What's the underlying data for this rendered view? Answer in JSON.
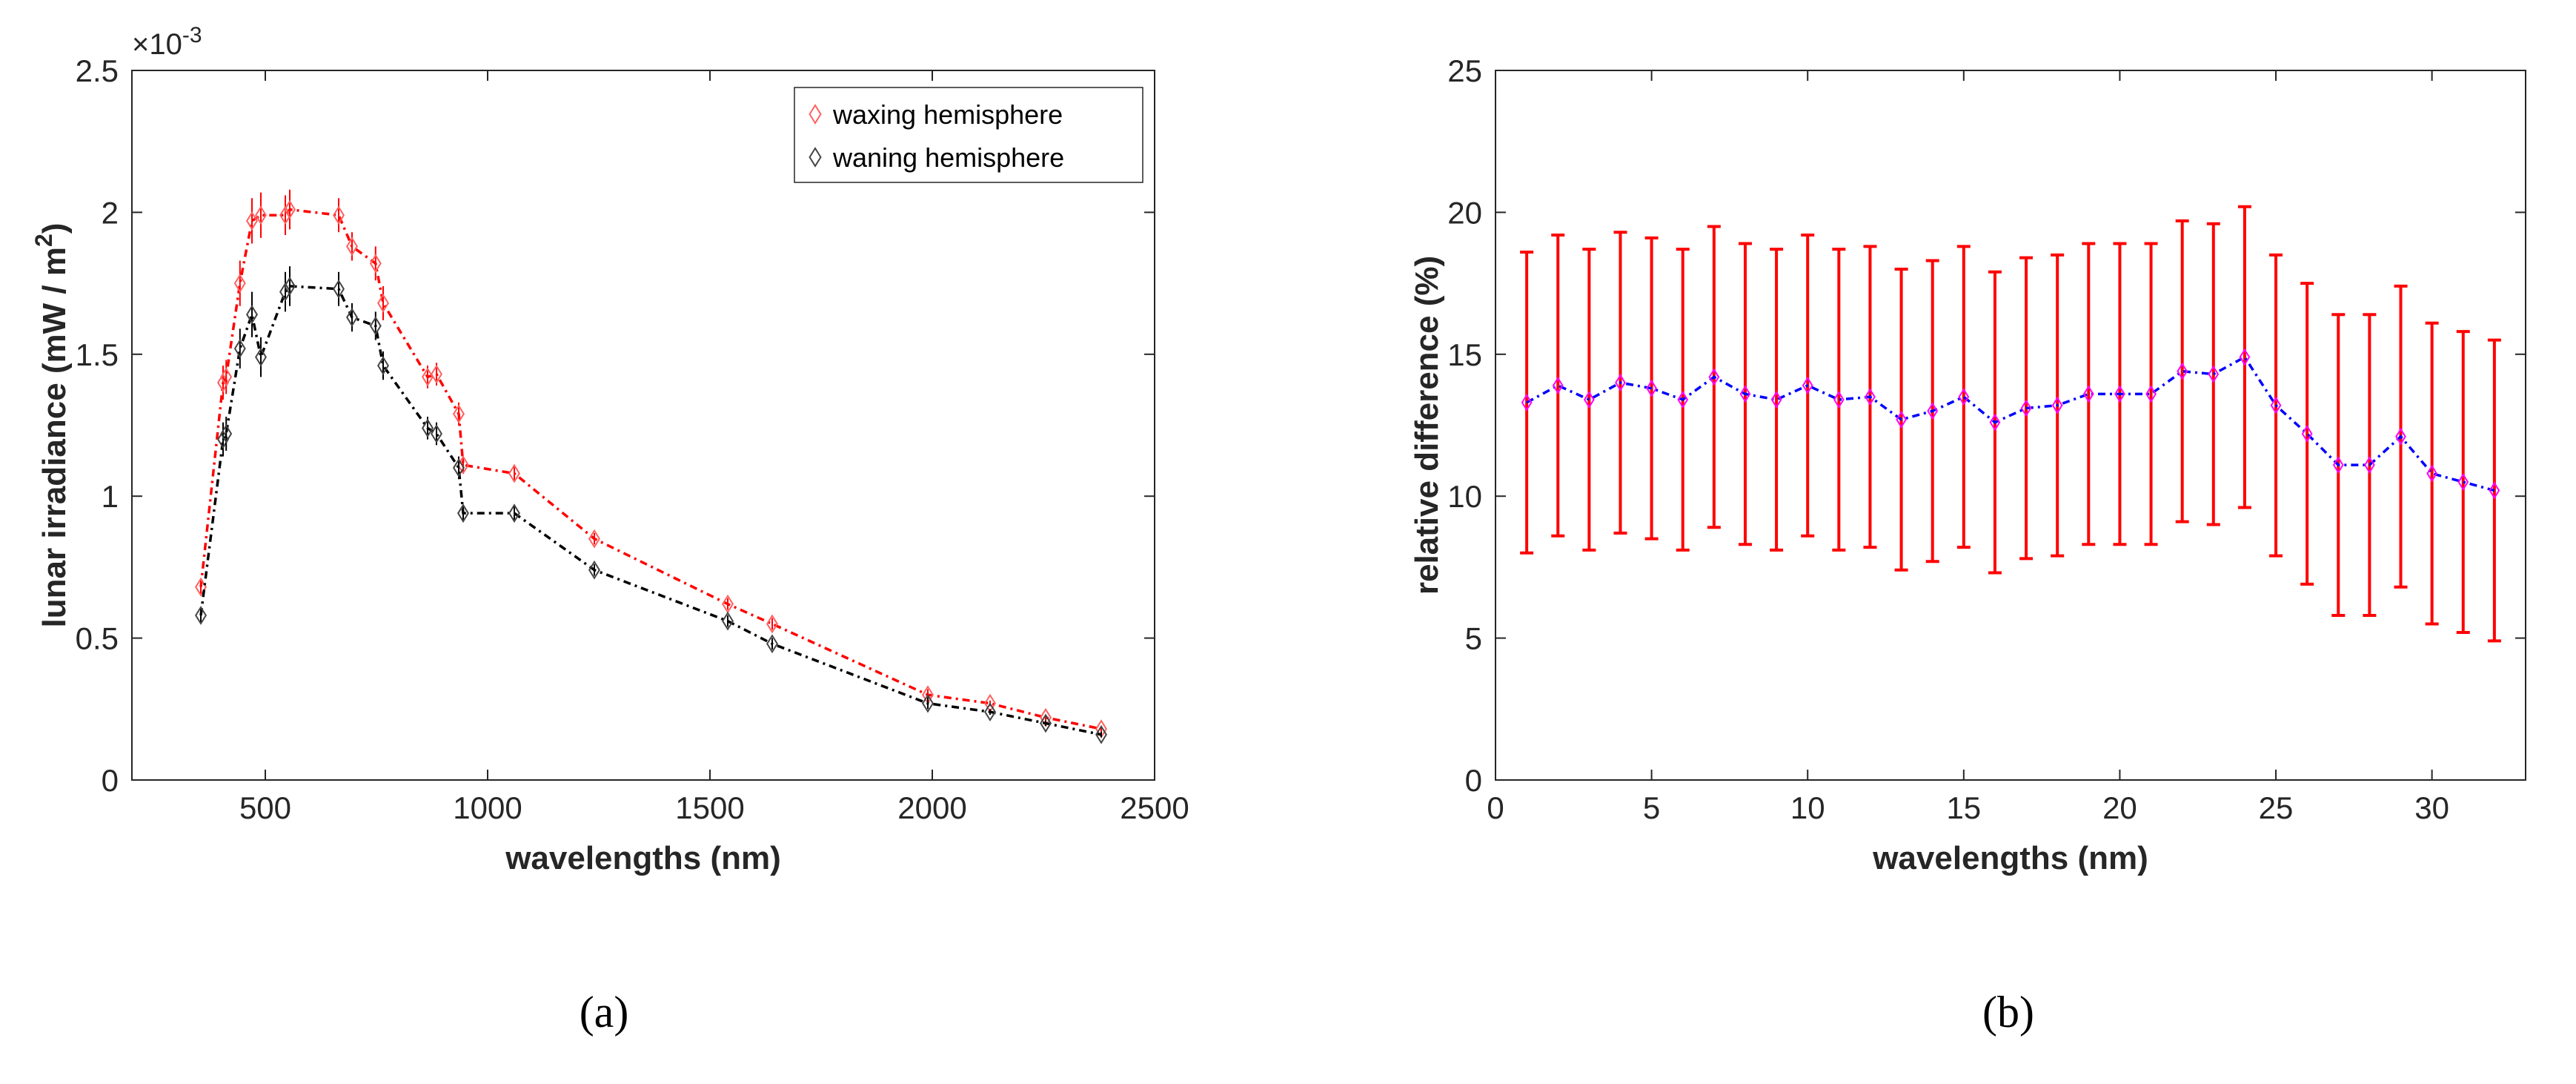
{
  "chart_data": [
    {
      "type": "line",
      "panel": "a",
      "caption": "(a)",
      "xlabel": "wavelengths (nm)",
      "ylabel_main": "lunar irradiance (mW / m",
      "ylabel_sup": "2",
      "ylabel_end": ")",
      "y_exponent_base": "×10",
      "y_exponent_power": "-3",
      "xlim": [
        200,
        2500
      ],
      "ylim": [
        0,
        2.5
      ],
      "xticks": [
        500,
        1000,
        1500,
        2000,
        2500
      ],
      "xtick_labels": [
        "500",
        "1000",
        "1500",
        "2000",
        "2500"
      ],
      "yticks": [
        0,
        0.5,
        1,
        1.5,
        2,
        2.5
      ],
      "ytick_labels": [
        "0",
        "0.5",
        "1",
        "1.5",
        "2",
        "2.5"
      ],
      "legend_position": "top-right",
      "series": [
        {
          "name": "waxing hemisphere",
          "color": "#ff0000",
          "x": [
            355,
            405,
            412,
            443,
            470,
            490,
            545,
            555,
            665,
            695,
            748,
            765,
            865,
            885,
            935,
            945,
            1060,
            1240,
            1540,
            1640,
            1990,
            2130,
            2255,
            2380
          ],
          "y": [
            0.68,
            1.4,
            1.42,
            1.75,
            1.97,
            1.99,
            1.99,
            2.01,
            1.99,
            1.88,
            1.82,
            1.68,
            1.42,
            1.43,
            1.29,
            1.11,
            1.08,
            0.85,
            0.62,
            0.55,
            0.3,
            0.27,
            0.22,
            0.18
          ],
          "err": [
            0.03,
            0.06,
            0.06,
            0.08,
            0.08,
            0.08,
            0.07,
            0.07,
            0.06,
            0.05,
            0.06,
            0.06,
            0.04,
            0.04,
            0.04,
            0.03,
            0.03,
            0.02,
            0.02,
            0.02,
            0.02,
            0.01,
            0.01,
            0.01
          ]
        },
        {
          "name": "waning hemisphere",
          "color": "#000000",
          "x": [
            355,
            405,
            412,
            443,
            470,
            490,
            545,
            555,
            665,
            695,
            748,
            765,
            865,
            885,
            935,
            945,
            1060,
            1240,
            1540,
            1640,
            1990,
            2130,
            2255,
            2380
          ],
          "y": [
            0.58,
            1.2,
            1.22,
            1.52,
            1.64,
            1.49,
            1.72,
            1.74,
            1.73,
            1.63,
            1.6,
            1.46,
            1.24,
            1.22,
            1.1,
            0.94,
            0.94,
            0.74,
            0.56,
            0.48,
            0.27,
            0.24,
            0.2,
            0.16
          ],
          "err": [
            0.03,
            0.06,
            0.06,
            0.07,
            0.08,
            0.07,
            0.07,
            0.07,
            0.06,
            0.05,
            0.05,
            0.05,
            0.04,
            0.04,
            0.04,
            0.03,
            0.03,
            0.02,
            0.02,
            0.02,
            0.02,
            0.01,
            0.01,
            0.01
          ]
        }
      ]
    },
    {
      "type": "line",
      "panel": "b",
      "caption": "(b)",
      "xlabel": "wavelengths (nm)",
      "ylabel": "relative difference (%)",
      "xlim": [
        0,
        33
      ],
      "ylim": [
        0,
        25
      ],
      "xticks": [
        0,
        5,
        10,
        15,
        20,
        25,
        30
      ],
      "xtick_labels": [
        "0",
        "5",
        "10",
        "15",
        "20",
        "25",
        "30"
      ],
      "yticks": [
        0,
        5,
        10,
        15,
        20,
        25
      ],
      "ytick_labels": [
        "0",
        "5",
        "10",
        "15",
        "20",
        "25"
      ],
      "series": [
        {
          "name": "relative difference",
          "line_color": "#0000ff",
          "marker_color": "#ff00ff",
          "errorbar_color": "#ff0000",
          "x": [
            1,
            2,
            3,
            4,
            5,
            6,
            7,
            8,
            9,
            10,
            11,
            12,
            13,
            14,
            15,
            16,
            17,
            18,
            19,
            20,
            21,
            22,
            23,
            24,
            25,
            26,
            27,
            28,
            29,
            30,
            31,
            32
          ],
          "y": [
            13.3,
            13.9,
            13.4,
            14.0,
            13.8,
            13.4,
            14.2,
            13.6,
            13.4,
            13.9,
            13.4,
            13.5,
            12.7,
            13.0,
            13.5,
            12.6,
            13.1,
            13.2,
            13.6,
            13.6,
            13.6,
            14.4,
            14.3,
            14.9,
            13.2,
            12.2,
            11.1,
            11.1,
            12.1,
            10.8,
            10.5,
            10.2
          ],
          "err": [
            5.3,
            5.3,
            5.3,
            5.3,
            5.3,
            5.3,
            5.3,
            5.3,
            5.3,
            5.3,
            5.3,
            5.3,
            5.3,
            5.3,
            5.3,
            5.3,
            5.3,
            5.3,
            5.3,
            5.3,
            5.3,
            5.3,
            5.3,
            5.3,
            5.3,
            5.3,
            5.3,
            5.3,
            5.3,
            5.3,
            5.3,
            5.3
          ]
        }
      ]
    }
  ]
}
